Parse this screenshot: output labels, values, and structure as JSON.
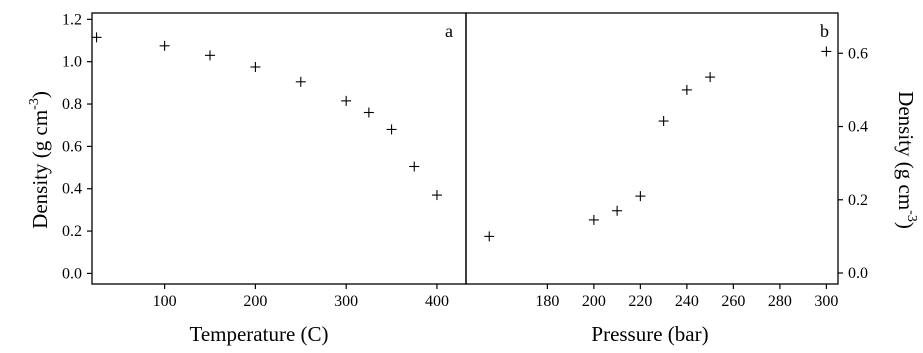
{
  "chart_data": [
    {
      "type": "scatter",
      "panel_label": "a",
      "xlabel": "Temperature (C)",
      "ylabel": "Density (g cm",
      "ylabel_superscript": "-3",
      "ylabel_close": ")",
      "xlim": [
        20,
        432
      ],
      "ylim": [
        -0.05,
        1.23
      ],
      "x_ticks": [
        100,
        200,
        300,
        400
      ],
      "y_ticks": [
        0.0,
        0.2,
        0.4,
        0.6,
        0.8,
        1.0,
        1.2
      ],
      "y_tick_labels": [
        "0.0",
        "0.2",
        "0.4",
        "0.6",
        "0.8",
        "1.0",
        "1.2"
      ],
      "x": [
        25,
        100,
        150,
        200,
        250,
        300,
        325,
        350,
        375,
        400
      ],
      "y": [
        1.115,
        1.075,
        1.03,
        0.975,
        0.905,
        0.815,
        0.76,
        0.68,
        0.505,
        0.37
      ],
      "marker": "+",
      "grid": false,
      "y_axis_side": "left"
    },
    {
      "type": "scatter",
      "panel_label": "b",
      "xlabel": "Pressure (bar)",
      "ylabel": "Density (g cm",
      "ylabel_superscript": "-3",
      "ylabel_close": ")",
      "xlim": [
        145,
        305
      ],
      "ylim": [
        -0.03,
        0.71
      ],
      "x_ticks": [
        180,
        200,
        220,
        240,
        260,
        280,
        300
      ],
      "y_ticks": [
        0.0,
        0.2,
        0.4,
        0.6
      ],
      "y_tick_labels": [
        "0.0",
        "0.2",
        "0.4",
        "0.6"
      ],
      "x": [
        155,
        200,
        210,
        220,
        230,
        240,
        250,
        300
      ],
      "y": [
        0.1,
        0.145,
        0.17,
        0.21,
        0.415,
        0.5,
        0.535,
        0.605
      ],
      "marker": "+",
      "grid": false,
      "y_axis_side": "right"
    }
  ]
}
